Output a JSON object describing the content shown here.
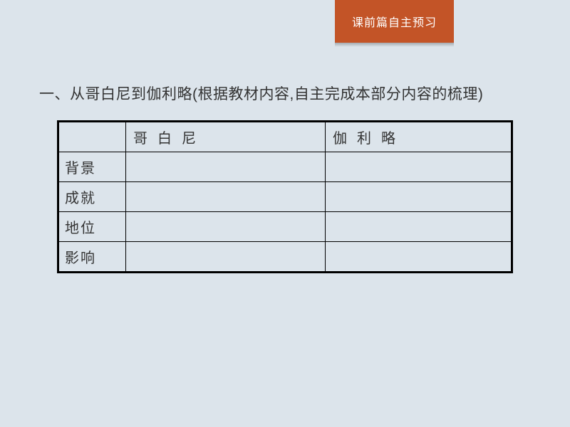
{
  "tab": {
    "label": "课前篇自主预习"
  },
  "heading": {
    "text": "一、从哥白尼到伽利略(根据教材内容,自主完成本部分内容的梳理)"
  },
  "table": {
    "header": {
      "col1": "",
      "col2": "哥白尼",
      "col3": "伽利略"
    },
    "rows": [
      {
        "label": "背景",
        "col2": "",
        "col3": ""
      },
      {
        "label": "成就",
        "col2": "",
        "col3": ""
      },
      {
        "label": "地位",
        "col2": "",
        "col3": ""
      },
      {
        "label": "影响",
        "col2": "",
        "col3": ""
      }
    ]
  },
  "colors": {
    "background": "#dce4eb",
    "tab_bg": "#c35427",
    "tab_text": "#ffffff",
    "text": "#333333",
    "border": "#000000"
  }
}
